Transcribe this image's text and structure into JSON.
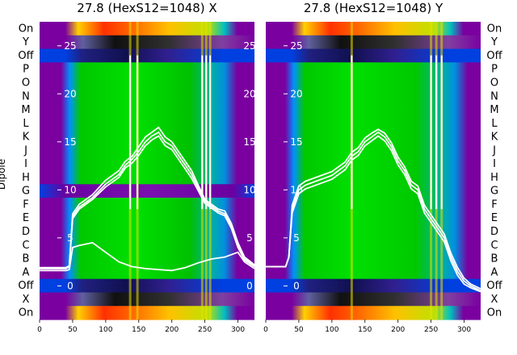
{
  "chart_data": [
    {
      "type": "heatmap",
      "title": "27.8 (HexS12=1048) X",
      "ylabel": "Dipole",
      "row_labels": [
        "On",
        "Y",
        "Off",
        "P",
        "O",
        "N",
        "M",
        "L",
        "K",
        "J",
        "I",
        "H",
        "G",
        "F",
        "E",
        "D",
        "C",
        "B",
        "A",
        "Off",
        "X",
        "On"
      ],
      "x_ticks": [
        0,
        50,
        100,
        150,
        200,
        250,
        300
      ],
      "x_range": [
        0,
        325
      ],
      "y_ticks": [
        0,
        5,
        10,
        15,
        20,
        25
      ],
      "y_range": [
        -3.5,
        27.5
      ],
      "overlay_lines": [
        {
          "x": [
            0,
            40,
            45,
            50,
            60,
            80,
            100,
            120,
            130,
            140,
            150,
            160,
            170,
            180,
            190,
            200,
            210,
            220,
            230,
            240,
            250,
            260,
            270,
            280,
            290,
            300,
            310,
            325
          ],
          "y": [
            1.8,
            1.8,
            2,
            7.5,
            8.5,
            9.5,
            11,
            12,
            13,
            13.5,
            14.5,
            15.5,
            16,
            16.5,
            15.5,
            15,
            14,
            13,
            12,
            10.5,
            9,
            8.5,
            8,
            7.8,
            6.5,
            4.5,
            3,
            2.2
          ]
        },
        {
          "x": [
            0,
            40,
            45,
            50,
            60,
            80,
            100,
            120,
            130,
            140,
            150,
            160,
            170,
            180,
            190,
            200,
            210,
            220,
            230,
            240,
            250,
            260,
            270,
            280,
            290,
            300,
            310,
            325
          ],
          "y": [
            1.8,
            1.8,
            2,
            7.2,
            8.2,
            9.2,
            10.6,
            11.6,
            12.6,
            13.2,
            14,
            15,
            15.6,
            16,
            15,
            14.6,
            13.6,
            12.6,
            11.6,
            10.2,
            8.8,
            8.3,
            7.8,
            7.5,
            6.2,
            4.2,
            2.8,
            2.1
          ]
        },
        {
          "x": [
            0,
            40,
            45,
            50,
            60,
            80,
            100,
            120,
            130,
            140,
            150,
            160,
            170,
            180,
            190,
            200,
            210,
            220,
            230,
            240,
            250,
            260,
            270,
            280,
            290,
            300,
            310,
            325
          ],
          "y": [
            1.9,
            1.9,
            2.1,
            7,
            8,
            9,
            10.3,
            11.3,
            12.3,
            12.8,
            13.6,
            14.6,
            15.2,
            15.6,
            14.6,
            14.2,
            13.2,
            12.2,
            11.2,
            9.9,
            8.6,
            8.1,
            7.6,
            7.3,
            6,
            4,
            2.7,
            2
          ]
        },
        {
          "x": [
            0,
            40,
            45,
            50,
            60,
            80,
            100,
            120,
            140,
            160,
            180,
            200,
            220,
            240,
            260,
            280,
            300,
            310,
            325
          ],
          "y": [
            1.6,
            1.6,
            1.7,
            4,
            4.2,
            4.5,
            3.5,
            2.5,
            2,
            1.8,
            1.7,
            1.6,
            1.9,
            2.4,
            2.8,
            3,
            3.5,
            2.5,
            1.8
          ]
        }
      ],
      "spike_x": [
        137,
        148,
        246,
        252,
        258
      ]
    },
    {
      "type": "heatmap",
      "title": "27.8 (HexS12=1048) Y",
      "row_labels": [
        "On",
        "Y",
        "Off",
        "P",
        "O",
        "N",
        "M",
        "L",
        "K",
        "J",
        "I",
        "H",
        "G",
        "F",
        "E",
        "D",
        "C",
        "B",
        "A",
        "Off",
        "X",
        "On"
      ],
      "x_ticks": [
        0,
        50,
        100,
        150,
        200,
        250,
        300
      ],
      "x_range": [
        0,
        325
      ],
      "y_ticks": [
        0,
        5,
        10,
        15,
        20,
        25
      ],
      "y_range": [
        -3.5,
        27.5
      ],
      "overlay_lines": [
        {
          "x": [
            0,
            30,
            35,
            40,
            50,
            60,
            80,
            100,
            120,
            130,
            140,
            150,
            160,
            170,
            180,
            190,
            200,
            210,
            220,
            230,
            240,
            250,
            260,
            270,
            280,
            290,
            300,
            310,
            325
          ],
          "y": [
            2,
            2,
            3,
            8,
            10,
            10.5,
            11,
            11.5,
            12.5,
            13.5,
            14,
            15,
            15.5,
            16,
            15.5,
            14.5,
            13,
            12,
            10.5,
            10,
            8,
            7,
            6,
            5,
            3,
            1.5,
            0.5,
            0,
            -0.5
          ]
        },
        {
          "x": [
            0,
            30,
            35,
            40,
            50,
            60,
            80,
            100,
            120,
            130,
            140,
            150,
            160,
            170,
            180,
            190,
            200,
            210,
            220,
            230,
            240,
            250,
            260,
            270,
            280,
            290,
            300,
            310,
            325
          ],
          "y": [
            2,
            2,
            3,
            8.4,
            10.4,
            10.9,
            11.4,
            11.9,
            12.9,
            13.9,
            14.4,
            15.4,
            15.9,
            16.3,
            15.9,
            14.9,
            13.4,
            12.4,
            10.9,
            10.4,
            8.4,
            7.4,
            6.4,
            5.4,
            3.4,
            1.9,
            0.8,
            0.2,
            -0.3
          ]
        },
        {
          "x": [
            0,
            30,
            35,
            40,
            50,
            60,
            80,
            100,
            120,
            130,
            140,
            150,
            160,
            170,
            180,
            190,
            200,
            210,
            220,
            230,
            240,
            250,
            260,
            270,
            280,
            290,
            300,
            310,
            325
          ],
          "y": [
            2,
            2,
            3,
            7.6,
            9.6,
            10.1,
            10.6,
            11.1,
            12.1,
            13.1,
            13.6,
            14.6,
            15.1,
            15.6,
            15.1,
            14.1,
            12.6,
            11.6,
            10.1,
            9.6,
            7.6,
            6.6,
            5.6,
            4.6,
            2.6,
            1.1,
            0.2,
            -0.2,
            -0.6
          ]
        }
      ],
      "spike_x": [
        130,
        250,
        258,
        266
      ]
    }
  ]
}
